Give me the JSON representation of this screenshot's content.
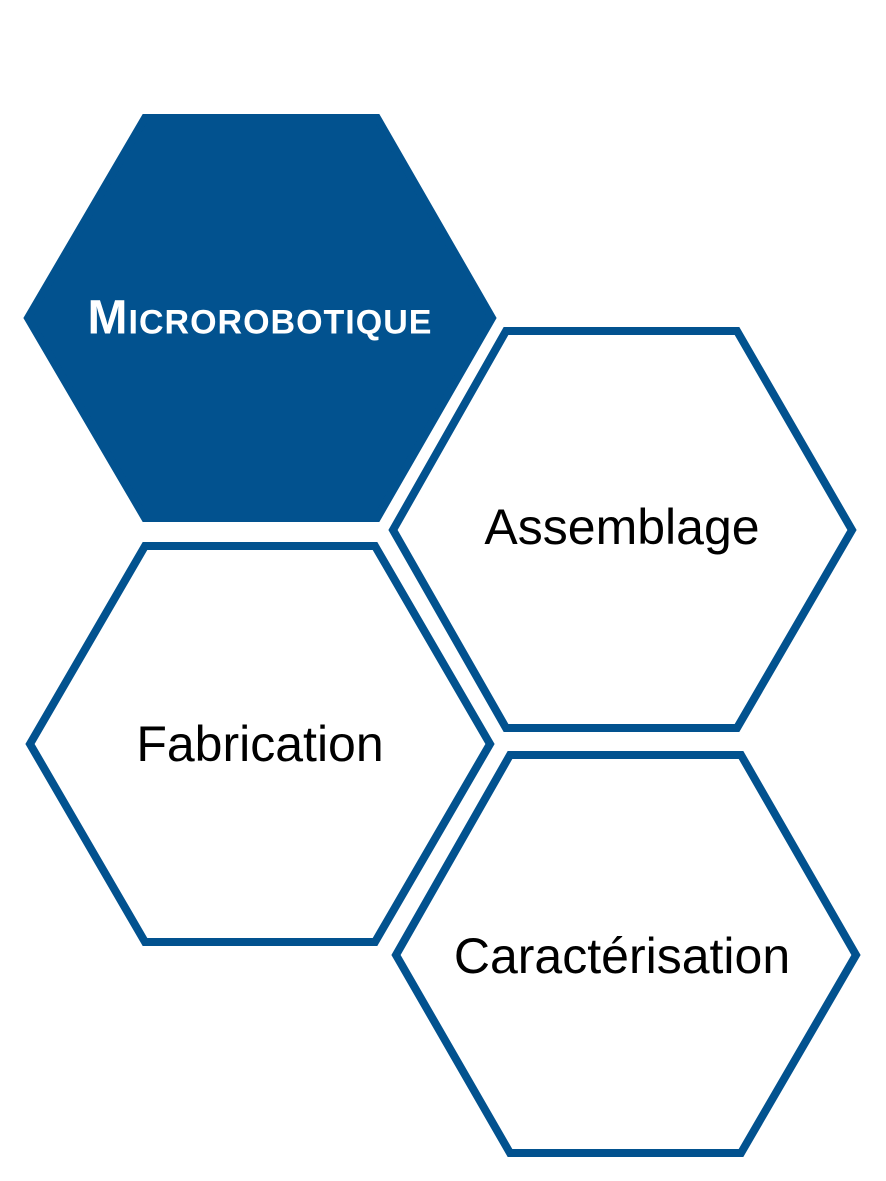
{
  "hexagons": {
    "main": {
      "label": "Microrobotique"
    },
    "assemblage": {
      "label": "Assemblage"
    },
    "fabrication": {
      "label": "Fabrication"
    },
    "caracterisation": {
      "label": "Caractérisation"
    }
  },
  "colors": {
    "accent": "#02528f",
    "background": "#ffffff",
    "main_text": "#ffffff",
    "sub_text": "#000000"
  }
}
